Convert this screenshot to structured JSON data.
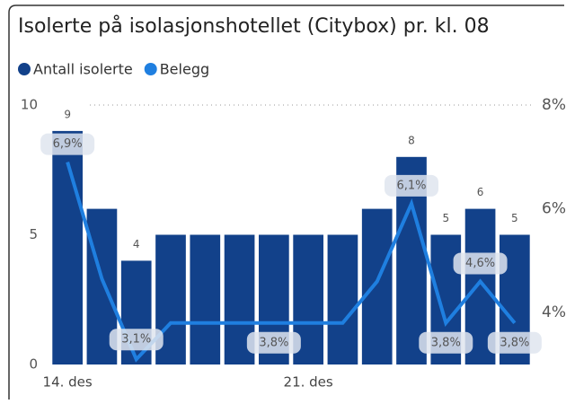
{
  "chart_data": {
    "type": "bar-line",
    "title": "Isolerte på isolasjonshotellet (Citybox) pr. kl. 08",
    "categories": [
      "14. des",
      null,
      null,
      null,
      null,
      null,
      null,
      "21. des",
      null,
      null,
      null,
      null,
      null,
      null
    ],
    "series": [
      {
        "name": "Antall isolerte",
        "color": "#12418a",
        "type": "bar",
        "values": [
          9,
          6,
          4,
          5,
          5,
          5,
          5,
          5,
          5,
          6,
          8,
          5,
          6,
          5
        ],
        "value_labels": [
          "9",
          null,
          "4",
          null,
          null,
          null,
          null,
          null,
          null,
          null,
          "8",
          "5",
          "6",
          "5"
        ]
      },
      {
        "name": "Belegg",
        "color": "#1f7fe0",
        "type": "line",
        "axis": "y2",
        "values": [
          6.9,
          4.65,
          3.1,
          3.8,
          3.8,
          3.8,
          3.8,
          3.8,
          3.8,
          4.6,
          6.1,
          3.8,
          4.6,
          3.8
        ],
        "value_labels": [
          "6,9%",
          null,
          "3,1%",
          null,
          null,
          null,
          "3,8%",
          null,
          null,
          null,
          "6,1%",
          "3,8%",
          "4,6%",
          "3,8%"
        ]
      }
    ],
    "ylim": [
      0,
      10
    ],
    "yticks": [
      0,
      5,
      10
    ],
    "y2lim": [
      3,
      8
    ],
    "y2ticks": [
      {
        "value": 4,
        "label": "4%"
      },
      {
        "value": 6,
        "label": "6%"
      },
      {
        "value": 8,
        "label": "8%"
      }
    ],
    "legend": "top-left"
  }
}
